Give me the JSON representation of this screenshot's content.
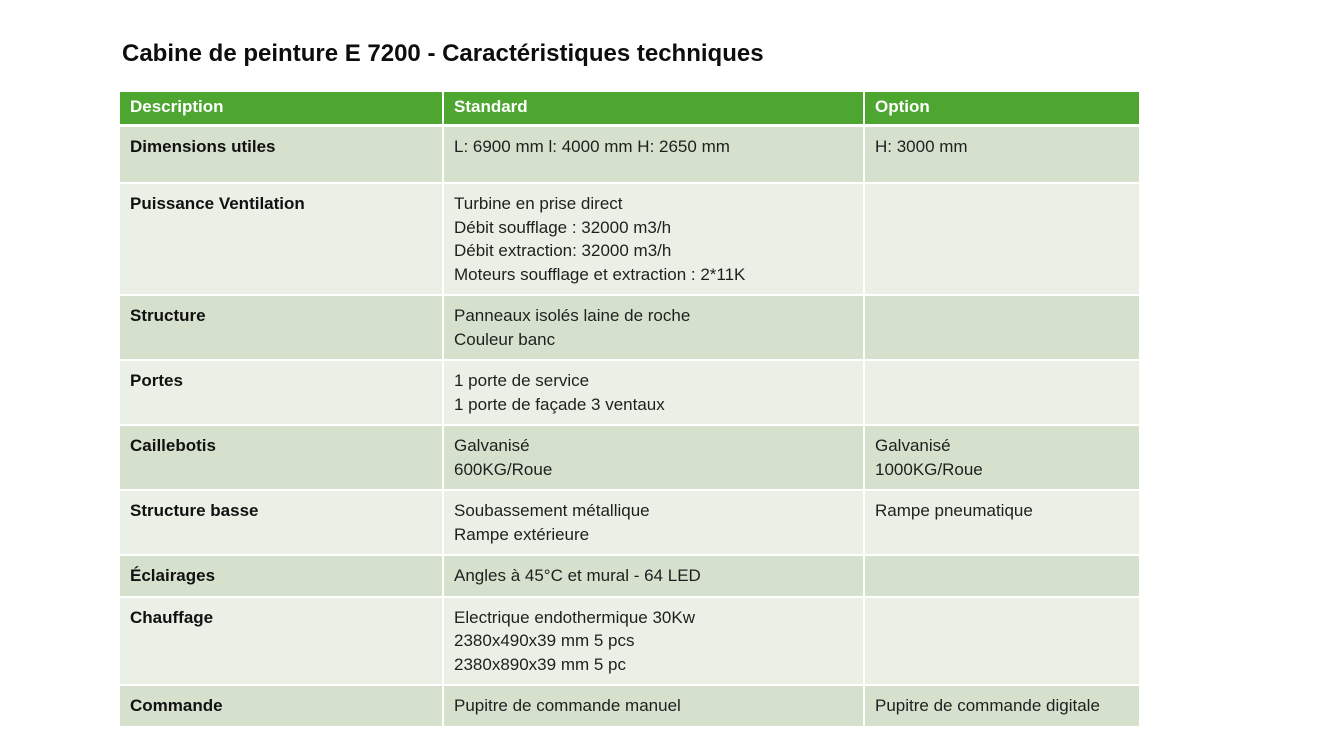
{
  "title": "Cabine de peinture E 7200 - Caractéristiques techniques",
  "table": {
    "headers": [
      "Description",
      "Standard",
      "Option"
    ],
    "rows": [
      {
        "description": "Dimensions utiles",
        "standard": [
          "L: 6900 mm l: 4000 mm H: 2650 mm"
        ],
        "option": [
          "H: 3000 mm"
        ]
      },
      {
        "description": "Puissance Ventilation",
        "standard": [
          "Turbine en prise direct",
          "Débit soufflage : 32000 m3/h",
          "Débit extraction: 32000 m3/h",
          "Moteurs soufflage et extraction : 2*11K"
        ],
        "option": []
      },
      {
        "description": "Structure",
        "standard": [
          "Panneaux isolés laine de roche",
          "Couleur banc"
        ],
        "option": []
      },
      {
        "description": "Portes",
        "standard": [
          "1 porte de service",
          "1 porte de façade 3 ventaux"
        ],
        "option": []
      },
      {
        "description": "Caillebotis",
        "standard": [
          "Galvanisé",
          "600KG/Roue"
        ],
        "option": [
          "Galvanisé",
          "1000KG/Roue"
        ]
      },
      {
        "description": "Structure basse",
        "standard": [
          "Soubassement métallique",
          "Rampe extérieure"
        ],
        "option": [
          "Rampe pneumatique"
        ]
      },
      {
        "description": "Éclairages",
        "standard": [
          "Angles à 45°C et mural - 64 LED"
        ],
        "option": []
      },
      {
        "description": "Chauffage",
        "standard": [
          "Electrique endothermique 30Kw",
          "2380x490x39 mm 5 pcs",
          "2380x890x39 mm 5 pc"
        ],
        "option": []
      },
      {
        "description": "Commande",
        "standard": [
          "Pupitre de commande manuel"
        ],
        "option": [
          "Pupitre de commande digitale"
        ]
      }
    ]
  },
  "colors": {
    "header_bg": "#4CA62F",
    "header_text": "#FFFFFF",
    "row_dark": "#D5E1CD",
    "row_light": "#EAF0E5",
    "body_text": "#1F1F1F"
  }
}
